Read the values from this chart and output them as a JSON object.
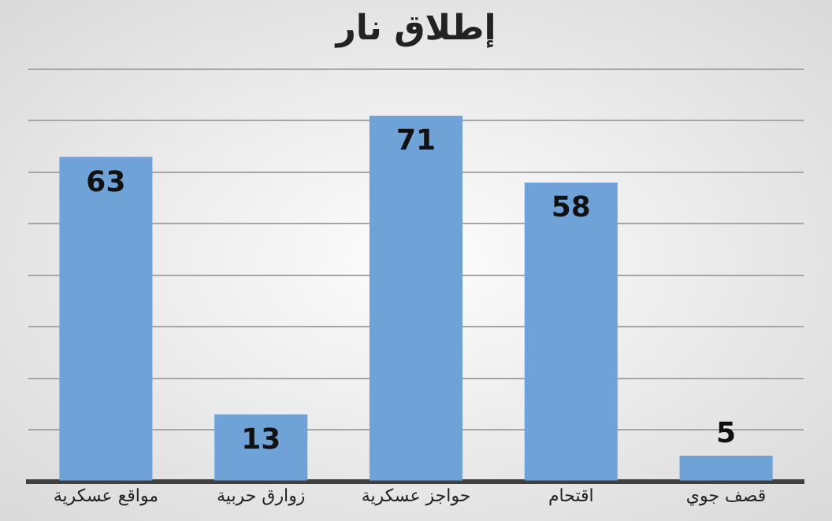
{
  "chart_data": {
    "type": "bar",
    "title": "إطلاق نار",
    "categories": [
      "مواقع عسكرية",
      "زوارق حربية",
      "حواجز عسكرية",
      "اقتحام",
      "قصف جوي"
    ],
    "values": [
      63,
      13,
      71,
      58,
      5
    ],
    "color": "#6fa3d8",
    "ylim": [
      0,
      80
    ],
    "yticks": [
      {
        "value": 0,
        "label": null
      },
      {
        "value": 10,
        "label": null
      },
      {
        "value": 20,
        "label": null
      },
      {
        "value": 30,
        "label": null
      },
      {
        "value": 40,
        "label": null
      },
      {
        "value": 50,
        "label": null
      },
      {
        "value": 60,
        "label": null
      },
      {
        "value": 70,
        "label": null
      },
      {
        "value": 80,
        "label": null
      }
    ],
    "grid": "y",
    "tick_labels": "x",
    "data_labels": true,
    "legend": false
  }
}
